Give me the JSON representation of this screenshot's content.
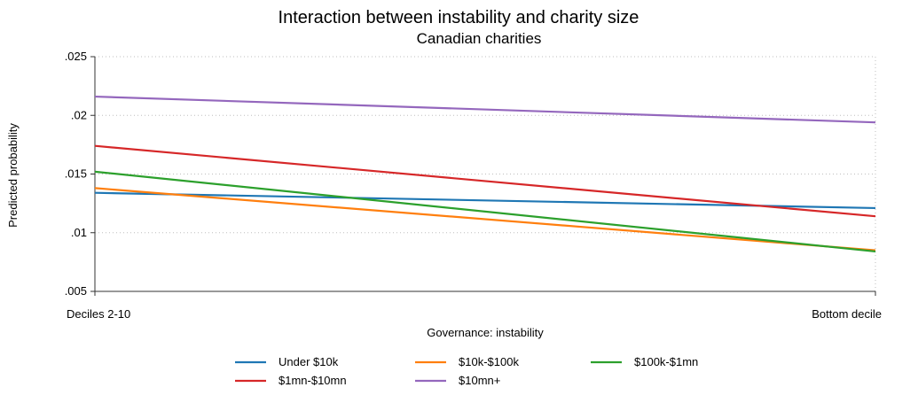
{
  "chart_data": {
    "type": "line",
    "title": "Interaction between instability and charity size",
    "subtitle": "Canadian charities",
    "xlabel": "Governance: instability",
    "ylabel": "Predicted probability",
    "categories": [
      "Deciles 2-10",
      "Bottom decile"
    ],
    "ylim": [
      0.005,
      0.025
    ],
    "yticks": [
      0.005,
      0.01,
      0.015,
      0.02,
      0.025
    ],
    "ytick_labels": [
      ".005",
      ".01",
      ".015",
      ".02",
      ".025"
    ],
    "grid": "dotted",
    "legend_position": "bottom",
    "series": [
      {
        "name": "Under $10k",
        "color": "#1f77b4",
        "values": [
          0.0134,
          0.0121
        ]
      },
      {
        "name": "$10k-$100k",
        "color": "#ff7f0e",
        "values": [
          0.0138,
          0.0085
        ]
      },
      {
        "name": "$100k-$1mn",
        "color": "#2ca02c",
        "values": [
          0.0152,
          0.0084
        ]
      },
      {
        "name": "$1mn-$10mn",
        "color": "#d62728",
        "values": [
          0.0174,
          0.0114
        ]
      },
      {
        "name": "$10mn+",
        "color": "#9467bd",
        "values": [
          0.0216,
          0.0194
        ]
      }
    ]
  }
}
